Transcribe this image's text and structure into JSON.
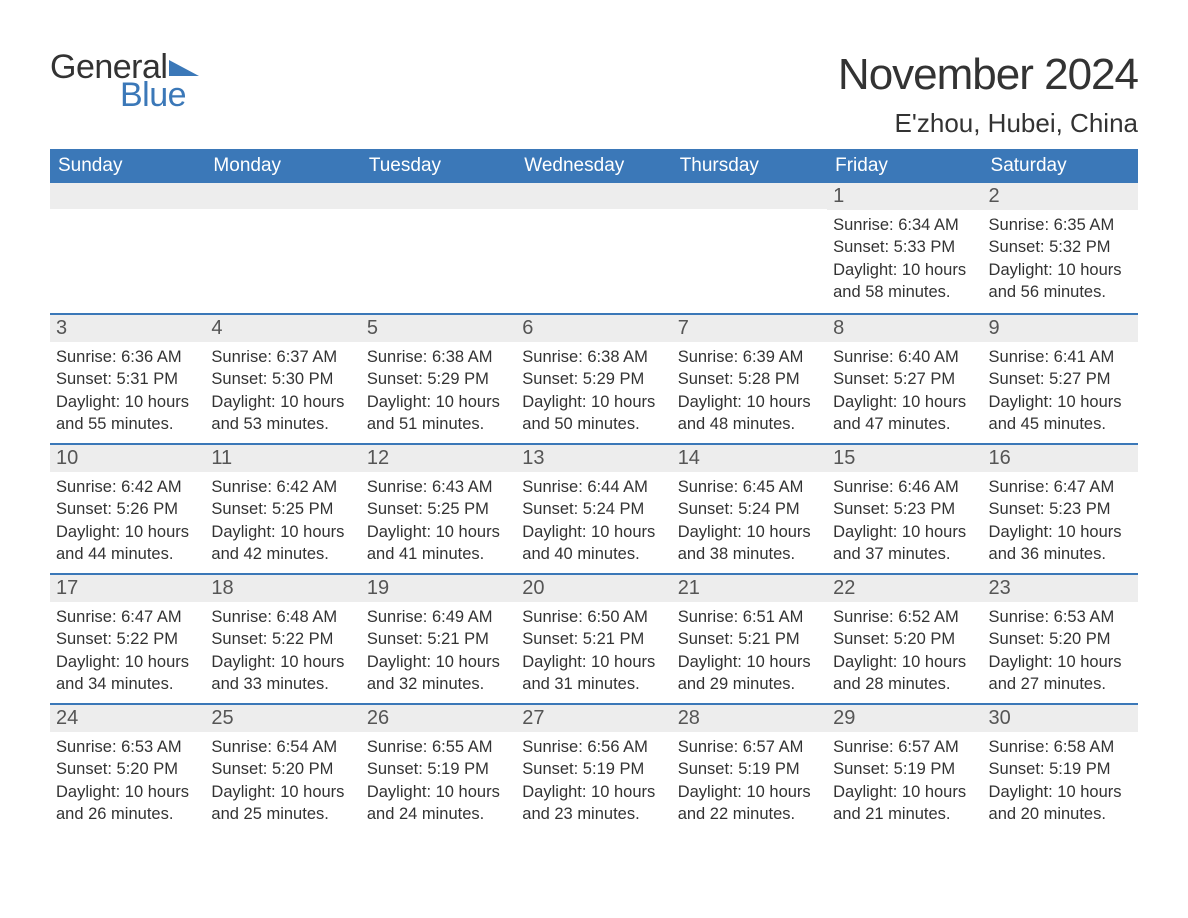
{
  "branding": {
    "word1": "General",
    "word2": "Blue",
    "word1_color": "#333333",
    "word2_color": "#3b78b8",
    "triangle_color": "#3b78b8"
  },
  "header": {
    "month_title": "November 2024",
    "location": "E'zhou, Hubei, China"
  },
  "colors": {
    "header_bg": "#3b78b8",
    "header_text": "#ffffff",
    "daynum_bg": "#ededed",
    "row_divider": "#3b78b8",
    "body_text": "#333333",
    "page_bg": "#ffffff"
  },
  "typography": {
    "month_title_fontsize": 44,
    "location_fontsize": 26,
    "weekday_fontsize": 19,
    "daynum_fontsize": 20,
    "body_fontsize": 16.5,
    "font_family": "Arial"
  },
  "weekdays": [
    "Sunday",
    "Monday",
    "Tuesday",
    "Wednesday",
    "Thursday",
    "Friday",
    "Saturday"
  ],
  "labels": {
    "sunrise": "Sunrise:",
    "sunset": "Sunset:",
    "daylight": "Daylight:"
  },
  "grid": [
    [
      null,
      null,
      null,
      null,
      null,
      {
        "n": "1",
        "sunrise": "6:34 AM",
        "sunset": "5:33 PM",
        "daylight_l1": "10 hours",
        "daylight_l2": "and 58 minutes."
      },
      {
        "n": "2",
        "sunrise": "6:35 AM",
        "sunset": "5:32 PM",
        "daylight_l1": "10 hours",
        "daylight_l2": "and 56 minutes."
      }
    ],
    [
      {
        "n": "3",
        "sunrise": "6:36 AM",
        "sunset": "5:31 PM",
        "daylight_l1": "10 hours",
        "daylight_l2": "and 55 minutes."
      },
      {
        "n": "4",
        "sunrise": "6:37 AM",
        "sunset": "5:30 PM",
        "daylight_l1": "10 hours",
        "daylight_l2": "and 53 minutes."
      },
      {
        "n": "5",
        "sunrise": "6:38 AM",
        "sunset": "5:29 PM",
        "daylight_l1": "10 hours",
        "daylight_l2": "and 51 minutes."
      },
      {
        "n": "6",
        "sunrise": "6:38 AM",
        "sunset": "5:29 PM",
        "daylight_l1": "10 hours",
        "daylight_l2": "and 50 minutes."
      },
      {
        "n": "7",
        "sunrise": "6:39 AM",
        "sunset": "5:28 PM",
        "daylight_l1": "10 hours",
        "daylight_l2": "and 48 minutes."
      },
      {
        "n": "8",
        "sunrise": "6:40 AM",
        "sunset": "5:27 PM",
        "daylight_l1": "10 hours",
        "daylight_l2": "and 47 minutes."
      },
      {
        "n": "9",
        "sunrise": "6:41 AM",
        "sunset": "5:27 PM",
        "daylight_l1": "10 hours",
        "daylight_l2": "and 45 minutes."
      }
    ],
    [
      {
        "n": "10",
        "sunrise": "6:42 AM",
        "sunset": "5:26 PM",
        "daylight_l1": "10 hours",
        "daylight_l2": "and 44 minutes."
      },
      {
        "n": "11",
        "sunrise": "6:42 AM",
        "sunset": "5:25 PM",
        "daylight_l1": "10 hours",
        "daylight_l2": "and 42 minutes."
      },
      {
        "n": "12",
        "sunrise": "6:43 AM",
        "sunset": "5:25 PM",
        "daylight_l1": "10 hours",
        "daylight_l2": "and 41 minutes."
      },
      {
        "n": "13",
        "sunrise": "6:44 AM",
        "sunset": "5:24 PM",
        "daylight_l1": "10 hours",
        "daylight_l2": "and 40 minutes."
      },
      {
        "n": "14",
        "sunrise": "6:45 AM",
        "sunset": "5:24 PM",
        "daylight_l1": "10 hours",
        "daylight_l2": "and 38 minutes."
      },
      {
        "n": "15",
        "sunrise": "6:46 AM",
        "sunset": "5:23 PM",
        "daylight_l1": "10 hours",
        "daylight_l2": "and 37 minutes."
      },
      {
        "n": "16",
        "sunrise": "6:47 AM",
        "sunset": "5:23 PM",
        "daylight_l1": "10 hours",
        "daylight_l2": "and 36 minutes."
      }
    ],
    [
      {
        "n": "17",
        "sunrise": "6:47 AM",
        "sunset": "5:22 PM",
        "daylight_l1": "10 hours",
        "daylight_l2": "and 34 minutes."
      },
      {
        "n": "18",
        "sunrise": "6:48 AM",
        "sunset": "5:22 PM",
        "daylight_l1": "10 hours",
        "daylight_l2": "and 33 minutes."
      },
      {
        "n": "19",
        "sunrise": "6:49 AM",
        "sunset": "5:21 PM",
        "daylight_l1": "10 hours",
        "daylight_l2": "and 32 minutes."
      },
      {
        "n": "20",
        "sunrise": "6:50 AM",
        "sunset": "5:21 PM",
        "daylight_l1": "10 hours",
        "daylight_l2": "and 31 minutes."
      },
      {
        "n": "21",
        "sunrise": "6:51 AM",
        "sunset": "5:21 PM",
        "daylight_l1": "10 hours",
        "daylight_l2": "and 29 minutes."
      },
      {
        "n": "22",
        "sunrise": "6:52 AM",
        "sunset": "5:20 PM",
        "daylight_l1": "10 hours",
        "daylight_l2": "and 28 minutes."
      },
      {
        "n": "23",
        "sunrise": "6:53 AM",
        "sunset": "5:20 PM",
        "daylight_l1": "10 hours",
        "daylight_l2": "and 27 minutes."
      }
    ],
    [
      {
        "n": "24",
        "sunrise": "6:53 AM",
        "sunset": "5:20 PM",
        "daylight_l1": "10 hours",
        "daylight_l2": "and 26 minutes."
      },
      {
        "n": "25",
        "sunrise": "6:54 AM",
        "sunset": "5:20 PM",
        "daylight_l1": "10 hours",
        "daylight_l2": "and 25 minutes."
      },
      {
        "n": "26",
        "sunrise": "6:55 AM",
        "sunset": "5:19 PM",
        "daylight_l1": "10 hours",
        "daylight_l2": "and 24 minutes."
      },
      {
        "n": "27",
        "sunrise": "6:56 AM",
        "sunset": "5:19 PM",
        "daylight_l1": "10 hours",
        "daylight_l2": "and 23 minutes."
      },
      {
        "n": "28",
        "sunrise": "6:57 AM",
        "sunset": "5:19 PM",
        "daylight_l1": "10 hours",
        "daylight_l2": "and 22 minutes."
      },
      {
        "n": "29",
        "sunrise": "6:57 AM",
        "sunset": "5:19 PM",
        "daylight_l1": "10 hours",
        "daylight_l2": "and 21 minutes."
      },
      {
        "n": "30",
        "sunrise": "6:58 AM",
        "sunset": "5:19 PM",
        "daylight_l1": "10 hours",
        "daylight_l2": "and 20 minutes."
      }
    ]
  ]
}
